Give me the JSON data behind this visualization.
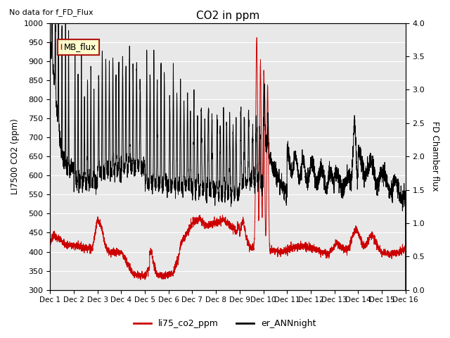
{
  "title": "CO2 in ppm",
  "ylabel_left": "LI7500 CO2 (ppm)",
  "ylabel_right": "FD Chamber flux",
  "ylim_left": [
    300,
    1000
  ],
  "ylim_right": [
    0.0,
    4.0
  ],
  "no_data_text": "No data for f_FD_Flux",
  "mb_flux_label": "MB_flux",
  "legend_labels": [
    "li75_co2_ppm",
    "er_ANNnight"
  ],
  "red_color": "#cc0000",
  "black_color": "#000000",
  "background_color": "#e8e8e8",
  "xticklabels": [
    "Dec 1",
    "Dec 2",
    "Dec 3",
    "Dec 4",
    "Dec 5",
    "Dec 6",
    "Dec 7",
    "Dec 8",
    "Dec 9",
    "Dec 10",
    "Dec 11",
    "Dec 12",
    "Dec 13",
    "Dec 14",
    "Dec 15",
    "Dec 16"
  ],
  "yticks_left": [
    300,
    350,
    400,
    450,
    500,
    550,
    600,
    650,
    700,
    750,
    800,
    850,
    900,
    950,
    1000
  ],
  "yticks_right": [
    0.0,
    0.5,
    1.0,
    1.5,
    2.0,
    2.5,
    3.0,
    3.5,
    4.0
  ],
  "figsize": [
    6.4,
    4.8
  ],
  "dpi": 100
}
